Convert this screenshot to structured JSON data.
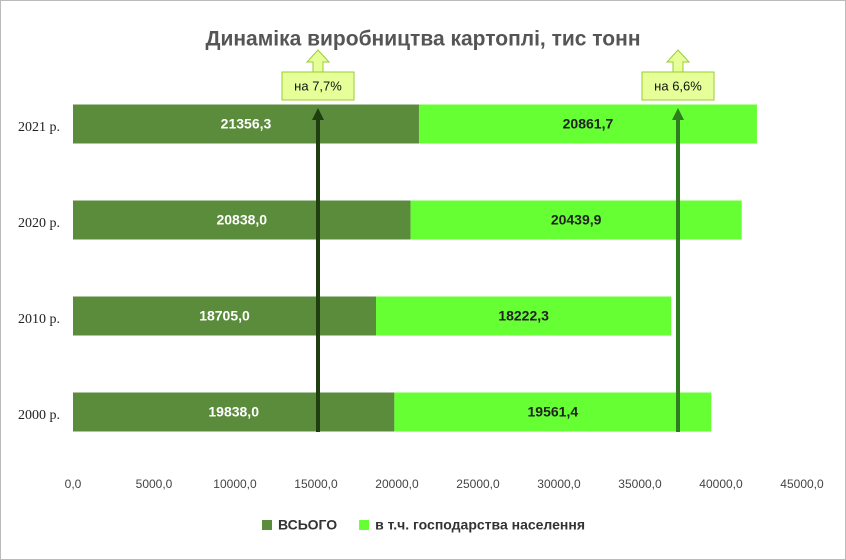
{
  "chart_data": {
    "type": "bar",
    "orientation": "horizontal",
    "stacked": true,
    "title": "Динаміка виробництва картоплі, тис тонн",
    "categories": [
      "2021 р.",
      "2020 р.",
      "2010 р.",
      "2000 р."
    ],
    "series": [
      {
        "name": "ВСЬОГО",
        "color": "#5b8c3b",
        "values": [
          21356.3,
          20838.0,
          18705.0,
          19838.0
        ],
        "value_labels": [
          "21356,3",
          "20838,0",
          "18705,0",
          "19838,0"
        ]
      },
      {
        "name": "в т.ч. господарства населення",
        "color": "#66ff33",
        "values": [
          20861.7,
          20439.9,
          18222.3,
          19561.4
        ],
        "value_labels": [
          "20861,7",
          "20439,9",
          "18222,3",
          "19561,4"
        ]
      }
    ],
    "xlim": [
      0,
      45000
    ],
    "xticks": [
      {
        "value": 0,
        "label": "0,0"
      },
      {
        "value": 5000,
        "label": "5000,0"
      },
      {
        "value": 10000,
        "label": "10000,0"
      },
      {
        "value": 15000,
        "label": "15000,0"
      },
      {
        "value": 20000,
        "label": "20000,0"
      },
      {
        "value": 25000,
        "label": "25000,0"
      },
      {
        "value": 30000,
        "label": "30000,0"
      },
      {
        "value": 35000,
        "label": "35000,0"
      },
      {
        "value": 40000,
        "label": "40000,0"
      },
      {
        "value": 45000,
        "label": "45000,0"
      }
    ],
    "legend": "bottom",
    "annotations": [
      {
        "text": "на 7,7%"
      },
      {
        "text": "на 6,6%"
      }
    ]
  }
}
